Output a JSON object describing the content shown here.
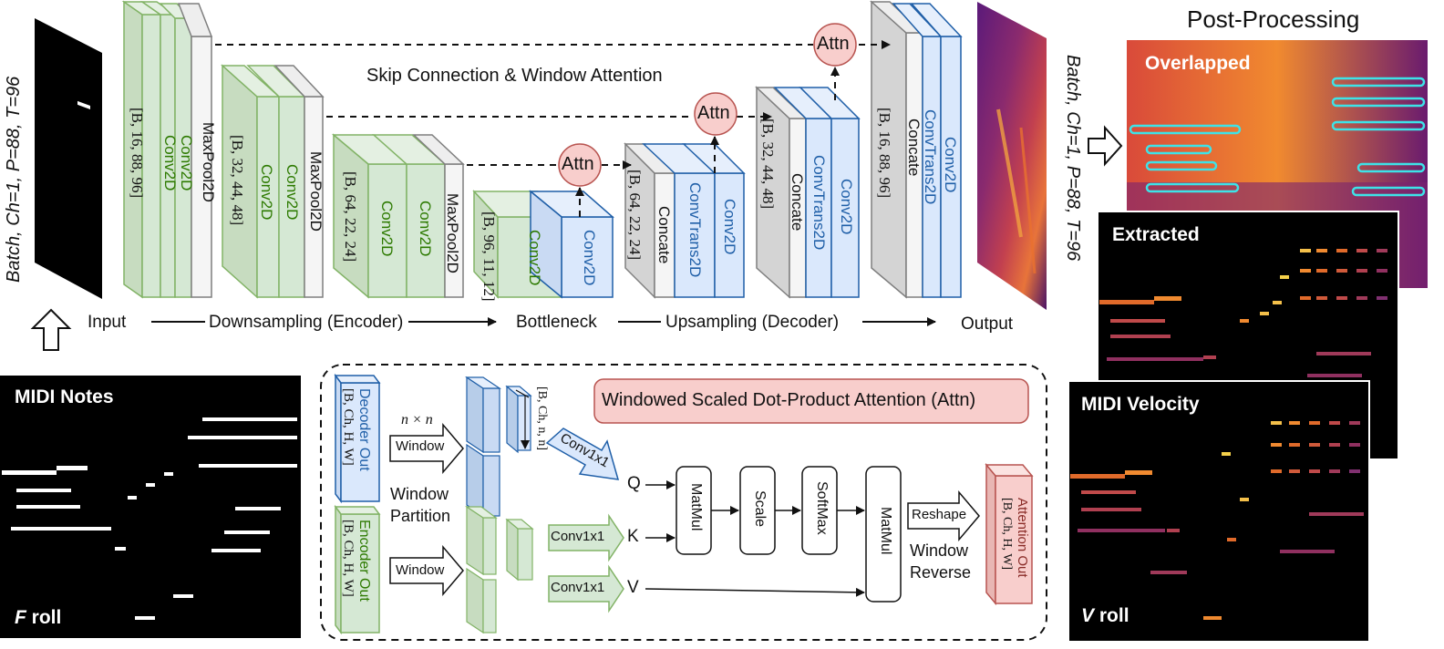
{
  "labels": {
    "post_processing": "Post-Processing",
    "skip_connection": "Skip Connection & Window Attention",
    "input": "Input",
    "downsampling": "Downsampling (Encoder)",
    "bottleneck": "Bottleneck",
    "upsampling": "Upsampling (Decoder)",
    "output": "Output",
    "input_shape": "Batch, Ch=1, P=88, T=96",
    "output_shape": "Batch, Ch=1, P=88, T=96"
  },
  "image_panels": {
    "overlapped": "Overlapped",
    "extracted": "Extracted",
    "midi_velocity": "MIDI Velocity",
    "midi_notes": "MIDI Notes",
    "f_roll_letter": "F",
    "v_roll_letter": "V",
    "roll_word": "roll"
  },
  "blocks": {
    "conv2d": "Conv2D",
    "maxpool2d": "MaxPool2D",
    "concate": "Concate",
    "convtrans2d": "ConvTrans2D",
    "attn": "Attn",
    "shape_16": "[B, 16, 88, 96]",
    "shape_32": "[B, 32, 44, 48]",
    "shape_64": "[B, 64, 22, 24]",
    "shape_96": "[B, 96, 11, 12]"
  },
  "attention_detail": {
    "title": "Windowed Scaled Dot-Product Attention (Attn)",
    "decoder_out": "Decoder Out",
    "encoder_out": "Encoder Out",
    "shape_bchw": "[B, Ch, H, W]",
    "shape_bchnn": "[B, Ch, n, n]",
    "nxn": "n × n",
    "window": "Window",
    "window_partition_1": "Window",
    "window_partition_2": "Partition",
    "conv1x1": "Conv1x1",
    "q": "Q",
    "k": "K",
    "v": "V",
    "matmul": "MatMul",
    "scale": "Scale",
    "softmax": "SoftMax",
    "reshape": "Reshape",
    "window_reverse_1": "Window",
    "window_reverse_2": "Reverse",
    "attention_out": "Attention Out"
  },
  "colors": {
    "green_face": "#d5e8d4",
    "green_stroke": "#82b366",
    "green_text": "#2d7a00",
    "blue_face": "#dae8fc",
    "blue_stroke": "#1f5fa8",
    "blue_text": "#1f5fa8",
    "gray_face": "#e6e6e6",
    "gray_stroke": "#7f7f7f",
    "attn_fill": "#f8cecc",
    "attn_stroke": "#b85450",
    "cyan_outline": "#3de3e8"
  }
}
